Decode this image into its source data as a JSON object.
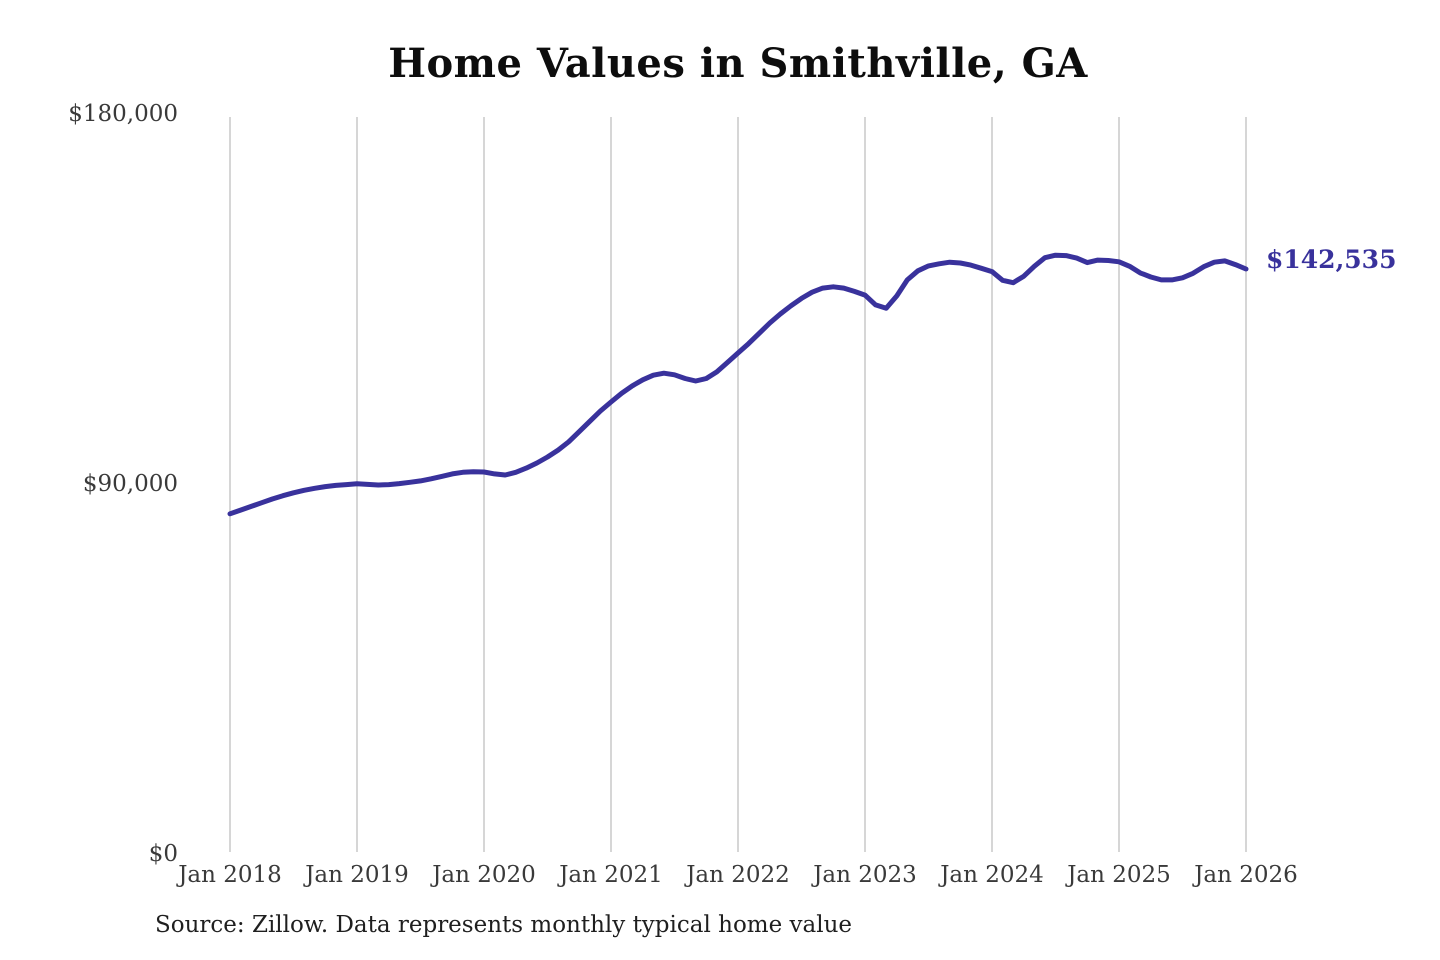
{
  "chart_data": {
    "type": "line",
    "title": "Home Values in Smithville, GA",
    "series_name": "Monthly typical home value",
    "x_tick_labels": [
      "Jan 2018",
      "Jan 2019",
      "Jan 2020",
      "Jan 2021",
      "Jan 2022",
      "Jan 2023",
      "Jan 2024",
      "Jan 2025",
      "Jan 2026"
    ],
    "y_tick_labels": [
      "$180,000",
      "$90,000",
      "$0"
    ],
    "y_tick_values": [
      180000,
      90000,
      0
    ],
    "ylim": [
      0,
      180000
    ],
    "x_start": "Jan 2018",
    "x_end": "Jan 2026",
    "x_interval": "monthly",
    "values": [
      83000,
      83900,
      84800,
      85700,
      86600,
      87400,
      88100,
      88700,
      89200,
      89600,
      89900,
      90100,
      90300,
      90150,
      90000,
      90100,
      90350,
      90650,
      91000,
      91500,
      92100,
      92700,
      93100,
      93200,
      93160,
      92700,
      92430,
      93100,
      94100,
      95350,
      96800,
      98500,
      100500,
      103000,
      105500,
      108000,
      110200,
      112300,
      114100,
      115600,
      116700,
      117200,
      116800,
      115900,
      115300,
      115900,
      117500,
      119800,
      122100,
      124400,
      126900,
      129400,
      131600,
      133600,
      135400,
      136900,
      137900,
      138200,
      137900,
      137100,
      136200,
      133800,
      133000,
      136000,
      139900,
      142100,
      143300,
      143800,
      144200,
      144000,
      143500,
      142700,
      141900,
      139800,
      139200,
      140800,
      143200,
      145300,
      145900,
      145800,
      145200,
      144100,
      144700,
      144600,
      144300,
      143200,
      141600,
      140600,
      139900,
      139900,
      140400,
      141500,
      143100,
      144200,
      144500,
      143600,
      142535
    ],
    "end_label": "$142,535",
    "end_value": 142535,
    "line_color": "#39329c",
    "grid_color": "#c9c9c9",
    "legend": "none",
    "grid": "vertical-only",
    "source_note": "Source: Zillow. Data represents monthly typical home value"
  }
}
